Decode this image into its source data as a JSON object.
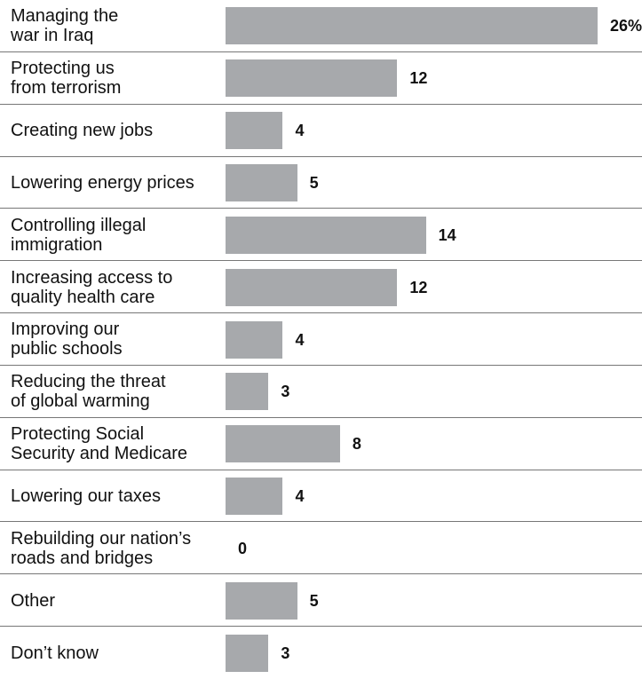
{
  "chart_data": {
    "type": "bar",
    "orientation": "horizontal",
    "categories": [
      "Managing the\nwar in Iraq",
      "Protecting us\nfrom terrorism",
      "Creating new jobs",
      "Lowering energy prices",
      "Controlling illegal\nimmigration",
      "Increasing access to\nquality health care",
      "Improving our\npublic schools",
      "Reducing the threat\nof global warming",
      "Protecting Social\nSecurity and Medicare",
      "Lowering our taxes",
      "Rebuilding our nation’s\nroads and bridges",
      "Other",
      "Don’t know"
    ],
    "values": [
      26,
      12,
      4,
      5,
      14,
      12,
      4,
      3,
      8,
      4,
      0,
      5,
      3
    ],
    "value_labels": [
      "26%",
      "12",
      "4",
      "5",
      "14",
      "12",
      "4",
      "3",
      "8",
      "4",
      "0",
      "5",
      "3"
    ],
    "color": "#a7a9ac"
  }
}
